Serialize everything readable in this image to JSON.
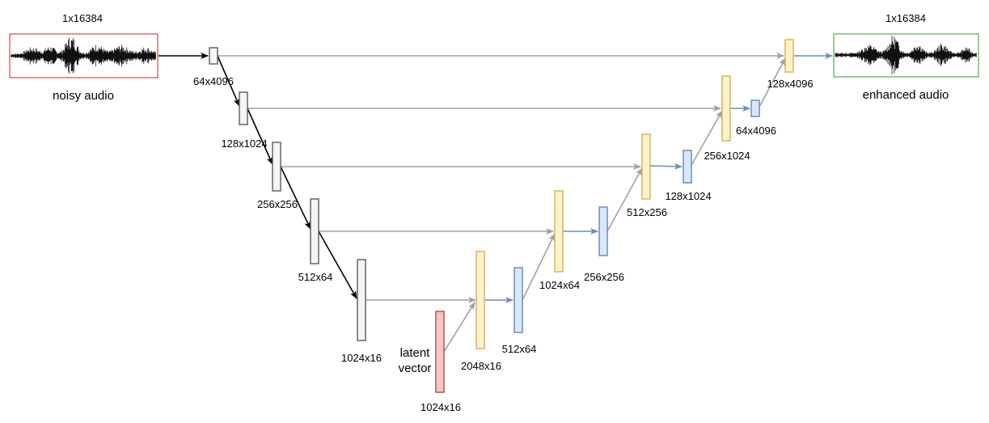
{
  "input": {
    "size_label": "1x16384",
    "caption": "noisy audio",
    "border_color": "#cc4c4c"
  },
  "output": {
    "size_label": "1x16384",
    "caption": "enhanced audio",
    "border_color": "#4cae4c"
  },
  "encoder": [
    {
      "label": "64x4096"
    },
    {
      "label": "128x1024"
    },
    {
      "label": "256x256"
    },
    {
      "label": "512x64"
    },
    {
      "label": "1024x16"
    }
  ],
  "latent": {
    "label": "1024x16",
    "caption_line1": "latent",
    "caption_line2": "vector",
    "fill": "#f2c8c8",
    "stroke": "#b85450"
  },
  "concat": [
    {
      "label": "2048x16"
    },
    {
      "label": "1024x64"
    },
    {
      "label": "512x256"
    },
    {
      "label": "256x1024"
    },
    {
      "label": "128x4096"
    }
  ],
  "decoder": [
    {
      "label": "512x64"
    },
    {
      "label": "256x256"
    },
    {
      "label": "128x1024"
    },
    {
      "label": "64x4096"
    }
  ],
  "colors": {
    "encoder_fill": "#f5f5f5",
    "encoder_stroke": "#666666",
    "concat_fill": "#fff2cc",
    "concat_stroke": "#d6b656",
    "decoder_fill": "#dae8fc",
    "decoder_stroke": "#6c8ebf",
    "skip_arrow": "#a0a0a0",
    "down_arrow": "#000000",
    "blue_arrow": "#6c8ebf"
  }
}
